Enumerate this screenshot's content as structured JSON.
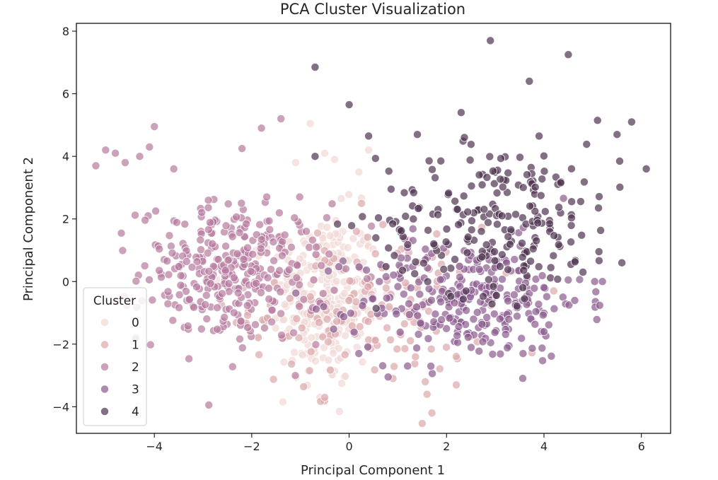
{
  "chart_data": {
    "type": "scatter",
    "title": "PCA Cluster Visualization",
    "xlabel": "Principal Component 1",
    "ylabel": "Principal Component 2",
    "xlim": [
      -5.6,
      6.6
    ],
    "ylim": [
      -4.85,
      8.25
    ],
    "xticks": [
      -4,
      -2,
      0,
      2,
      4,
      6
    ],
    "yticks": [
      -4,
      -2,
      0,
      2,
      4,
      6,
      8
    ],
    "grid": false,
    "legend": {
      "title": "Cluster",
      "position": "lower-left",
      "entries": [
        "0",
        "1",
        "2",
        "3",
        "4"
      ]
    },
    "marker_opacity": 0.7,
    "series": [
      {
        "name": "0",
        "color": "#f1d9d6",
        "center": [
          -0.5,
          -0.6
        ],
        "spread": [
          0.55,
          1.4
        ],
        "count": 260,
        "extra_points": [
          [
            -0.8,
            5.05
          ],
          [
            -0.5,
            4.1
          ],
          [
            -0.3,
            3.9
          ],
          [
            0.4,
            4.2
          ],
          [
            0.2,
            3.5
          ],
          [
            -1.1,
            3.8
          ],
          [
            -0.2,
            -4.15
          ],
          [
            -0.6,
            -3.7
          ]
        ]
      },
      {
        "name": "1",
        "color": "#dba8ad",
        "center": [
          0.4,
          -0.8
        ],
        "spread": [
          1.2,
          1.3
        ],
        "count": 170,
        "extra_points": [
          [
            1.7,
            -4.2
          ],
          [
            1.6,
            -3.6
          ],
          [
            2.2,
            -3.3
          ],
          [
            -0.5,
            -3.7
          ],
          [
            0.9,
            -3.1
          ],
          [
            4.2,
            -0.3
          ]
        ]
      },
      {
        "name": "2",
        "color": "#b77a9e",
        "center": [
          -2.4,
          0.3
        ],
        "spread": [
          0.95,
          1.1
        ],
        "count": 330,
        "extra_points": [
          [
            -5.2,
            3.7
          ],
          [
            -5.0,
            4.2
          ],
          [
            -4.8,
            4.1
          ],
          [
            -4.0,
            4.95
          ],
          [
            -3.6,
            3.6
          ],
          [
            -1.8,
            4.9
          ],
          [
            -1.4,
            5.2
          ],
          [
            -2.2,
            4.25
          ],
          [
            -4.3,
            4.0
          ],
          [
            -4.6,
            3.8
          ],
          [
            -4.1,
            4.3
          ]
        ]
      },
      {
        "name": "3",
        "color": "#8a5b8e",
        "center": [
          2.5,
          -0.6
        ],
        "spread": [
          1.15,
          0.95
        ],
        "count": 280,
        "extra_points": [
          [
            0.2,
            -2.3
          ],
          [
            0.8,
            -3.05
          ],
          [
            1.2,
            -2.7
          ],
          [
            4.0,
            -1.6
          ],
          [
            5.2,
            0.0
          ]
        ]
      },
      {
        "name": "4",
        "color": "#4f3350",
        "center": [
          3.1,
          2.0
        ],
        "spread": [
          1.25,
          1.2
        ],
        "count": 220,
        "extra_points": [
          [
            -0.7,
            6.85
          ],
          [
            0.0,
            5.65
          ],
          [
            2.9,
            7.7
          ],
          [
            4.5,
            7.25
          ],
          [
            3.7,
            6.4
          ],
          [
            5.8,
            5.1
          ],
          [
            6.1,
            3.6
          ],
          [
            5.5,
            4.7
          ],
          [
            4.8,
            0.3
          ],
          [
            5.6,
            0.6
          ],
          [
            2.3,
            5.4
          ],
          [
            1.4,
            4.7
          ],
          [
            0.4,
            4.65
          ],
          [
            -0.7,
            4.0
          ],
          [
            5.1,
            5.15
          ],
          [
            3.9,
            4.65
          ]
        ]
      }
    ]
  }
}
